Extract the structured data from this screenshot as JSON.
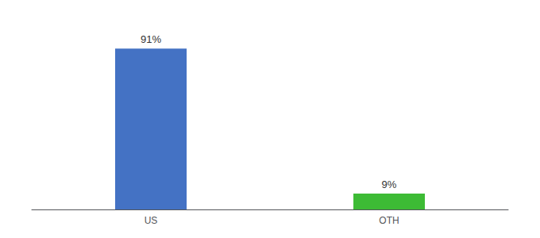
{
  "chart_data": {
    "type": "bar",
    "categories": [
      "US",
      "OTH"
    ],
    "values": [
      91,
      9
    ],
    "value_labels": [
      "91%",
      "9%"
    ],
    "colors": [
      "#4472c4",
      "#3dbb35"
    ],
    "data_labels": true,
    "ylim": [
      0,
      105
    ],
    "tick_labels": "x",
    "grid": false
  }
}
